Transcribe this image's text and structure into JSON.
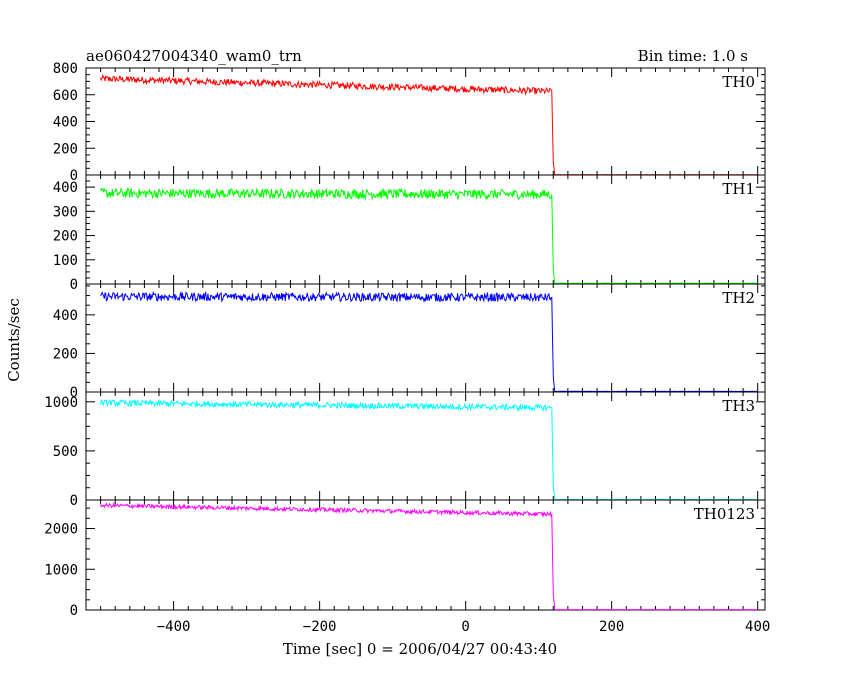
{
  "header": {
    "title": "ae060427004340_wam0_trn",
    "bin_time": "Bin time: 1.0 s"
  },
  "xlabel": "Time [sec] 0 = 2006/04/27 00:43:40",
  "ylabel": "Counts/sec",
  "chart_data": [
    {
      "type": "line",
      "name": "TH0",
      "color": "#ff0000",
      "xlim": [
        -520,
        410
      ],
      "ylim": [
        0,
        800
      ],
      "yticks": [
        0,
        200,
        400,
        600,
        800
      ],
      "xticks": [
        -400,
        -200,
        0,
        200,
        400
      ],
      "x": [
        -500,
        118,
        120,
        122,
        400
      ],
      "y": [
        720,
        625,
        100,
        2,
        2
      ],
      "noise": 25
    },
    {
      "type": "line",
      "name": "TH1",
      "color": "#00ff00",
      "xlim": [
        -520,
        410
      ],
      "ylim": [
        0,
        450
      ],
      "yticks": [
        0,
        100,
        200,
        300,
        400
      ],
      "xticks": [
        -400,
        -200,
        0,
        200,
        400
      ],
      "x": [
        -500,
        118,
        120,
        122,
        400
      ],
      "y": [
        375,
        370,
        60,
        3,
        3
      ],
      "noise": 20
    },
    {
      "type": "line",
      "name": "TH2",
      "color": "#0000ff",
      "xlim": [
        -520,
        410
      ],
      "ylim": [
        0,
        560
      ],
      "yticks": [
        0,
        200,
        400
      ],
      "xticks": [
        -400,
        -200,
        0,
        200,
        400
      ],
      "x": [
        -500,
        118,
        120,
        122,
        400
      ],
      "y": [
        495,
        490,
        80,
        3,
        3
      ],
      "noise": 22
    },
    {
      "type": "line",
      "name": "TH3",
      "color": "#00ffff",
      "xlim": [
        -520,
        410
      ],
      "ylim": [
        0,
        1100
      ],
      "yticks": [
        0,
        500,
        1000
      ],
      "xticks": [
        -400,
        -200,
        0,
        200,
        400
      ],
      "x": [
        -500,
        118,
        120,
        122,
        400
      ],
      "y": [
        990,
        940,
        150,
        5,
        5
      ],
      "noise": 30
    },
    {
      "type": "line",
      "name": "TH0123",
      "color": "#ff00ff",
      "xlim": [
        -520,
        410
      ],
      "ylim": [
        0,
        2700
      ],
      "yticks": [
        0,
        1000,
        2000
      ],
      "xticks": [
        -400,
        -200,
        0,
        200,
        400
      ],
      "x": [
        -500,
        118,
        120,
        122,
        400
      ],
      "y": [
        2570,
        2350,
        400,
        10,
        10
      ],
      "noise": 50
    }
  ]
}
